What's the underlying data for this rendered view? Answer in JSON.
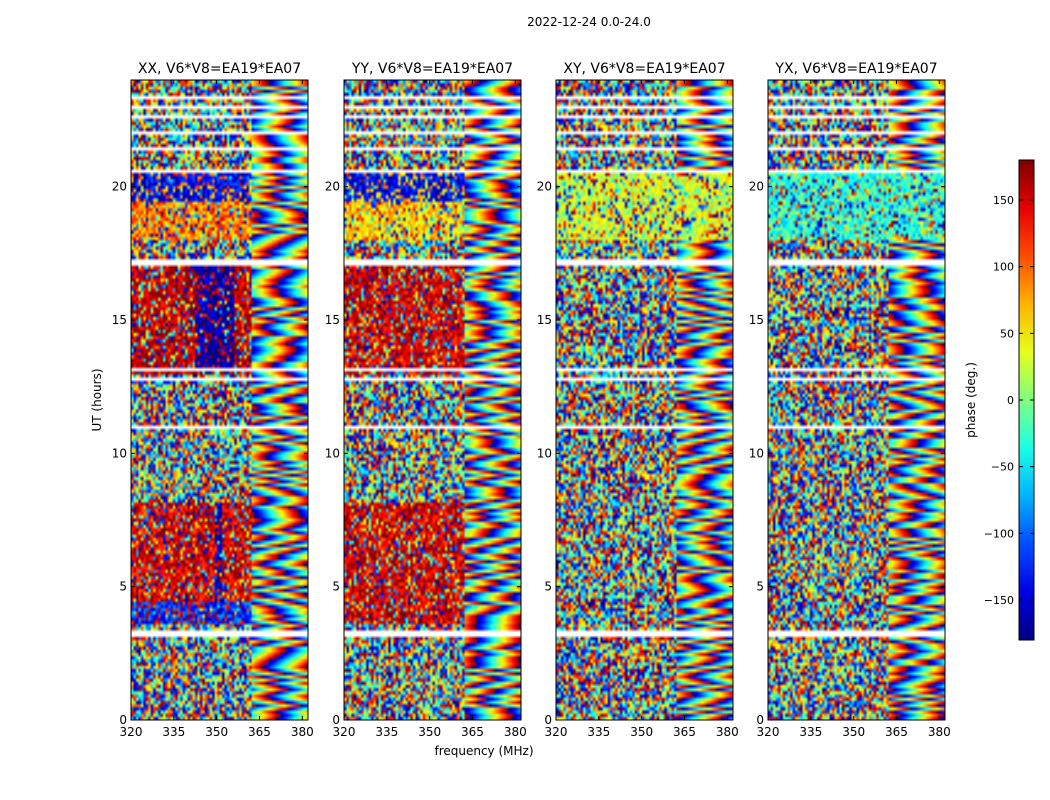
{
  "chart_data": {
    "type": "heatmap",
    "title": "2022-12-24 0.0-24.0",
    "xlabel": "frequency (MHz)",
    "ylabel": "UT (hours)",
    "xlim": [
      320,
      382
    ],
    "ylim": [
      0,
      24
    ],
    "xticks": [
      320,
      335,
      350,
      365,
      380
    ],
    "yticks": [
      0,
      5,
      10,
      15,
      20
    ],
    "panels": [
      {
        "title": "XX, V6*V8=EA19*EA07",
        "pol": "XX",
        "rfi_edge_mhz": 362,
        "regions": [
          {
            "t0": 3.6,
            "t1": 8.1,
            "f0": 320,
            "f1": 362,
            "phase": 150
          },
          {
            "t0": 3.6,
            "t1": 4.4,
            "f0": 320,
            "f1": 362,
            "phase": -120
          },
          {
            "t0": 4.4,
            "t1": 8.1,
            "f0": 349,
            "f1": 352,
            "phase": -160
          },
          {
            "t0": 13.0,
            "t1": 17.0,
            "f0": 320,
            "f1": 362,
            "phase": 160
          },
          {
            "t0": 13.0,
            "t1": 17.0,
            "f0": 342,
            "f1": 356,
            "phase": -170
          },
          {
            "t0": 18.0,
            "t1": 20.5,
            "f0": 320,
            "f1": 362,
            "phase": 90
          },
          {
            "t0": 19.5,
            "t1": 20.5,
            "f0": 320,
            "f1": 362,
            "phase": -140
          }
        ]
      },
      {
        "title": "YY, V6*V8=EA19*EA07",
        "pol": "YY",
        "rfi_edge_mhz": 362,
        "regions": [
          {
            "t0": 3.6,
            "t1": 8.1,
            "f0": 320,
            "f1": 362,
            "phase": 150
          },
          {
            "t0": 13.0,
            "t1": 17.0,
            "f0": 320,
            "f1": 362,
            "phase": 150
          },
          {
            "t0": 18.0,
            "t1": 20.5,
            "f0": 320,
            "f1": 362,
            "phase": 60
          },
          {
            "t0": 19.5,
            "t1": 20.5,
            "f0": 320,
            "f1": 362,
            "phase": -140
          }
        ]
      },
      {
        "title": "XY, V6*V8=EA19*EA07",
        "pol": "XY",
        "rfi_edge_mhz": 362,
        "regions": [
          {
            "t0": 18.0,
            "t1": 20.5,
            "f0": 320,
            "f1": 382,
            "phase": 30
          }
        ]
      },
      {
        "title": "YX, V6*V8=EA19*EA07",
        "pol": "YX",
        "rfi_edge_mhz": 362,
        "regions": [
          {
            "t0": 18.0,
            "t1": 20.5,
            "f0": 320,
            "f1": 382,
            "phase": -30
          }
        ]
      }
    ],
    "flagged_hours": [
      3.15,
      3.3,
      8.15,
      9.6,
      11.0,
      12.8,
      13.1,
      17.1,
      17.2,
      20.6,
      21.4,
      22.0,
      22.6,
      23.0,
      23.3
    ],
    "colorbar": {
      "label": "phase (deg.)",
      "vmin": -180,
      "vmax": 180,
      "ticks": [
        -150,
        -100,
        -50,
        0,
        50,
        100,
        150
      ],
      "tick_labels": [
        "−150",
        "−100",
        "−50",
        "0",
        "50",
        "100",
        "150"
      ],
      "cmap": "jet"
    }
  }
}
